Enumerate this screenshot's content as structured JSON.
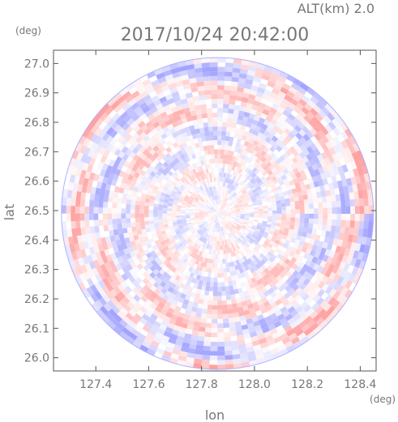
{
  "header": {
    "alt_label": "ALT(km)  2.0",
    "datetime": "2017/10/24  20:42:00",
    "lat_unit": "(deg)",
    "lon_unit": "(deg)"
  },
  "colors": {
    "positive": "#ff9a9a",
    "negative": "#9a9aff",
    "frame": "#555555",
    "text": "#777777"
  },
  "chart_data": {
    "type": "heatmap",
    "title": "2017/10/24  20:42:00",
    "xlabel": "lon",
    "ylabel": "lat",
    "xlim": [
      127.24,
      128.46
    ],
    "ylim": [
      25.955,
      27.045
    ],
    "x_ticks": [
      "127.4",
      "127.6",
      "127.8",
      "128.0",
      "128.2",
      "128.4"
    ],
    "y_ticks": [
      "26.0",
      "26.1",
      "26.2",
      "26.3",
      "26.4",
      "26.5",
      "26.6",
      "26.7",
      "26.8",
      "26.9",
      "27.0"
    ],
    "radar_center": [
      127.86,
      26.49
    ],
    "radar_range_deg": 0.59,
    "grid": false,
    "pattern": "polar range-azimuth field, alternating positive (red) and negative (blue) values"
  }
}
